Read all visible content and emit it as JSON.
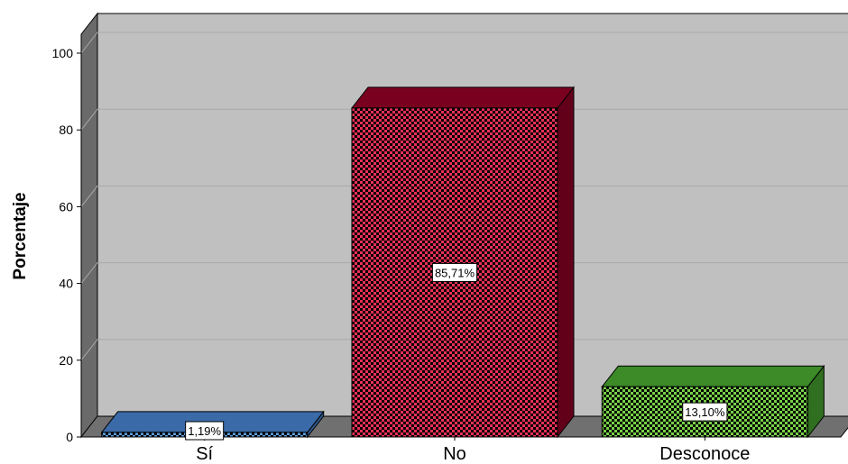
{
  "chart_data": {
    "type": "bar",
    "title": "",
    "xlabel": "",
    "ylabel": "Porcentaje",
    "ylim": [
      0,
      100
    ],
    "yticks": [
      "0",
      "20",
      "40",
      "60",
      "80",
      "100"
    ],
    "grid": true,
    "legend": "none",
    "categories": [
      "Sí",
      "No",
      "Desconoce"
    ],
    "values": [
      1.19,
      85.71,
      13.1
    ],
    "data_labels": [
      "1,19%",
      "85,71%",
      "13,10%"
    ],
    "colors": [
      "#3a6aa8",
      "#7a0020",
      "#3c8a28"
    ],
    "pattern_colors": [
      "#5aa0e0",
      "#e83058",
      "#78d048"
    ],
    "background_color": "#c0c0c0"
  }
}
